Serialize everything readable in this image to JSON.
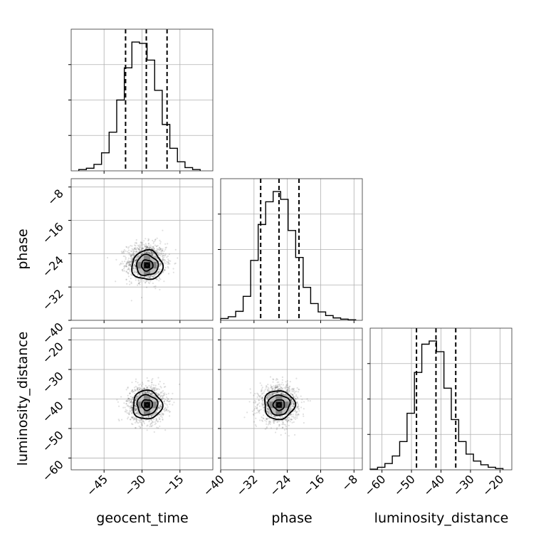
{
  "chart_data": {
    "type": "corner",
    "grid": true,
    "parameters": [
      {
        "id": "geocent_time",
        "label": "geocent_time",
        "range": [
          -58,
          -2
        ],
        "ticks": [
          -45,
          -30,
          -15
        ],
        "tick_labels": [
          "−45",
          "−30",
          "−15"
        ]
      },
      {
        "id": "phase",
        "label": "phase",
        "range": [
          -40,
          -6
        ],
        "ticks": [
          -40,
          -32,
          -24,
          -16,
          -8
        ],
        "tick_labels": [
          "−40",
          "−32",
          "−24",
          "−16",
          "−8"
        ]
      },
      {
        "id": "luminosity_distance",
        "label": "luminosity_distance",
        "range": [
          -64,
          -16
        ],
        "ticks": [
          -60,
          -50,
          -40,
          -30,
          -20
        ],
        "tick_labels": [
          "−60",
          "−50",
          "−40",
          "−30",
          "−20"
        ]
      }
    ],
    "histograms": [
      {
        "param": "geocent_time",
        "edges": [
          -55,
          -52,
          -49,
          -46,
          -43,
          -40,
          -37,
          -34,
          -31,
          -28,
          -25,
          -22,
          -19,
          -16,
          -13,
          -10,
          -7
        ],
        "counts": [
          2,
          4,
          10,
          28,
          60,
          110,
          160,
          200,
          198,
          172,
          125,
          72,
          35,
          14,
          5,
          2
        ],
        "quantiles": [
          -36.5,
          -28.3,
          -20.1
        ]
      },
      {
        "param": "phase",
        "edges": [
          -40,
          -38.2,
          -36.4,
          -34.6,
          -32.8,
          -31,
          -29.2,
          -27.4,
          -25.6,
          -23.8,
          -22,
          -20.2,
          -18.4,
          -16.6,
          -14.8,
          -13,
          -11.2,
          -9.4,
          -7.6
        ],
        "counts": [
          3,
          6,
          15,
          40,
          100,
          160,
          198,
          215,
          202,
          150,
          105,
          55,
          28,
          14,
          8,
          4,
          2,
          1
        ],
        "quantiles": [
          -30.4,
          -26.0,
          -21.2
        ]
      },
      {
        "param": "luminosity_distance",
        "edges": [
          -64,
          -61.5,
          -59,
          -56.5,
          -54,
          -51.5,
          -49,
          -46.5,
          -44,
          -41.5,
          -39,
          -36.5,
          -34,
          -31.5,
          -29,
          -26.5,
          -24,
          -21.5,
          -19
        ],
        "counts": [
          1,
          4,
          10,
          22,
          45,
          90,
          155,
          200,
          205,
          188,
          130,
          80,
          45,
          25,
          14,
          8,
          4,
          2
        ],
        "quantiles": [
          -48.3,
          -41.7,
          -35.0
        ]
      }
    ],
    "scatter_2d": [
      {
        "x": "geocent_time",
        "y": "phase",
        "center": [
          -28.2,
          -26.0
        ],
        "spread": [
          9.0,
          5.2
        ],
        "peak": [
          -28,
          -26.8
        ]
      },
      {
        "x": "geocent_time",
        "y": "luminosity_distance",
        "center": [
          -28.3,
          -41.7
        ],
        "spread": [
          8.5,
          7.2
        ],
        "peak": [
          -28,
          -42
        ]
      },
      {
        "x": "phase",
        "y": "luminosity_distance",
        "center": [
          -26.0,
          -41.7
        ],
        "spread": [
          5.4,
          7.2
        ],
        "peak": [
          -26,
          -42
        ]
      }
    ]
  }
}
